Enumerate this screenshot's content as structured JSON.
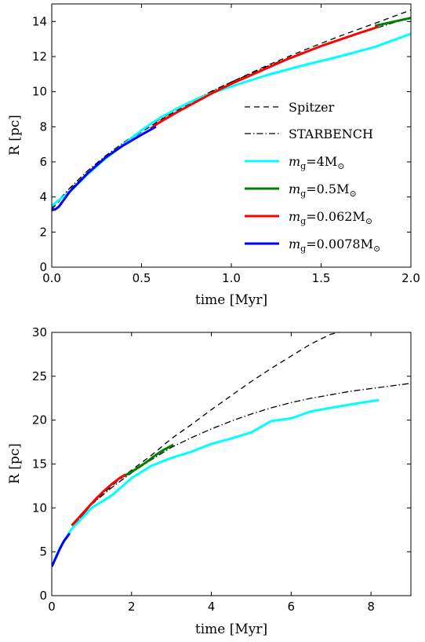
{
  "chart_data": [
    {
      "type": "line",
      "xlabel": "time [Myr]",
      "ylabel": "R [pc]",
      "xlim": [
        0,
        2.0
      ],
      "ylim": [
        0,
        15
      ],
      "xticks": [
        "0.0",
        "0.5",
        "1.0",
        "1.5",
        "2.0"
      ],
      "yticks": [
        "0",
        "2",
        "4",
        "6",
        "8",
        "10",
        "12",
        "14"
      ],
      "legend_placement": "lower-right",
      "series": [
        {
          "name": "Spitzer",
          "style": "dashed",
          "color": "#000000",
          "width": 1.3,
          "x": [
            0,
            0.05,
            0.1,
            0.2,
            0.3,
            0.4,
            0.5,
            0.6,
            0.7,
            0.8,
            0.9,
            1.0,
            1.2,
            1.4,
            1.6,
            1.8,
            2.0
          ],
          "y": [
            3.3,
            3.85,
            4.4,
            5.4,
            6.25,
            7.0,
            7.7,
            8.35,
            8.95,
            9.5,
            10.05,
            10.55,
            11.5,
            12.35,
            13.15,
            13.9,
            14.65
          ]
        },
        {
          "name": "STARBENCH",
          "style": "dashdot",
          "color": "#000000",
          "width": 1.3,
          "x": [
            0,
            0.05,
            0.1,
            0.2,
            0.3,
            0.4,
            0.5,
            0.6,
            0.7,
            0.8,
            0.9,
            1.0,
            1.2,
            1.4,
            1.6,
            1.8,
            2.0
          ],
          "y": [
            3.4,
            3.95,
            4.5,
            5.5,
            6.35,
            7.1,
            7.8,
            8.42,
            9.0,
            9.55,
            10.08,
            10.55,
            11.45,
            12.25,
            12.95,
            13.6,
            14.25
          ]
        },
        {
          "name": "m_g=4M_sun",
          "color": "#00ffff",
          "width": 3,
          "x": [
            0,
            0.1,
            0.2,
            0.3,
            0.4,
            0.5,
            0.6,
            0.7,
            0.8,
            0.9,
            1.0,
            1.2,
            1.4,
            1.6,
            1.8,
            2.0
          ],
          "y": [
            3.5,
            4.3,
            5.3,
            6.2,
            7.0,
            7.8,
            8.5,
            9.05,
            9.55,
            9.95,
            10.3,
            10.95,
            11.5,
            12.0,
            12.55,
            13.3
          ]
        },
        {
          "name": "m_g=0.5M_sun",
          "color": "#008000",
          "width": 3,
          "x": [
            1.8,
            1.9,
            2.0
          ],
          "y": [
            13.75,
            13.98,
            14.2
          ]
        },
        {
          "name": "m_g=0.062M_sun",
          "color": "#ff0000",
          "width": 3,
          "x": [
            0.55,
            0.6,
            0.7,
            0.8,
            0.9,
            1.0,
            1.1,
            1.2,
            1.3,
            1.4,
            1.5,
            1.6,
            1.7,
            1.82
          ],
          "y": [
            7.9,
            8.25,
            8.85,
            9.4,
            9.95,
            10.45,
            10.9,
            11.35,
            11.8,
            12.2,
            12.6,
            12.95,
            13.3,
            13.7
          ]
        },
        {
          "name": "m_g=0.0078M_sun",
          "color": "#0000ff",
          "width": 3,
          "x": [
            0,
            0.02,
            0.04,
            0.1,
            0.2,
            0.3,
            0.4,
            0.5,
            0.58
          ],
          "y": [
            3.25,
            3.3,
            3.45,
            4.3,
            5.35,
            6.25,
            6.95,
            7.55,
            8.0
          ]
        }
      ]
    },
    {
      "type": "line",
      "xlabel": "time [Myr]",
      "ylabel": "R [pc]",
      "xlim": [
        0,
        9
      ],
      "ylim": [
        0,
        30
      ],
      "xticks": [
        "0",
        "2",
        "4",
        "6",
        "8"
      ],
      "yticks": [
        "0",
        "5",
        "10",
        "15",
        "20",
        "25",
        "30"
      ],
      "series": [
        {
          "name": "Spitzer",
          "style": "dashed",
          "color": "#000000",
          "width": 1.3,
          "x": [
            0,
            0.2,
            0.5,
            1.0,
            1.5,
            2.0,
            2.5,
            3.0,
            3.5,
            4.0,
            4.5,
            5.0,
            5.5,
            6.0,
            6.5,
            7.0,
            7.2
          ],
          "y": [
            3.3,
            5.5,
            7.7,
            10.4,
            12.5,
            14.3,
            16.0,
            17.9,
            19.5,
            21.2,
            22.8,
            24.4,
            25.9,
            27.3,
            28.7,
            29.8,
            30.0
          ]
        },
        {
          "name": "STARBENCH",
          "style": "dashdot",
          "color": "#000000",
          "width": 1.3,
          "x": [
            0,
            0.2,
            0.5,
            1.0,
            1.5,
            2.0,
            2.5,
            3.0,
            3.5,
            4.0,
            4.5,
            5.0,
            5.5,
            6.0,
            6.5,
            7.0,
            7.5,
            8.0,
            8.5,
            9.0
          ],
          "y": [
            3.3,
            5.5,
            7.7,
            10.4,
            12.3,
            14.0,
            15.5,
            16.9,
            18.0,
            19.0,
            19.9,
            20.7,
            21.4,
            22.0,
            22.5,
            22.9,
            23.3,
            23.6,
            23.9,
            24.2
          ]
        },
        {
          "name": "m_g=4M_sun",
          "color": "#00ffff",
          "width": 3,
          "x": [
            0,
            0.2,
            0.5,
            1.0,
            1.5,
            2.0,
            2.5,
            3.0,
            3.5,
            4.0,
            4.5,
            5.0,
            5.5,
            6.0,
            6.5,
            7.0,
            7.5,
            8.2
          ],
          "y": [
            3.3,
            5.4,
            7.6,
            10.0,
            11.4,
            13.4,
            14.8,
            15.7,
            16.4,
            17.3,
            17.9,
            18.6,
            19.9,
            20.2,
            21.0,
            21.4,
            21.8,
            22.3
          ]
        },
        {
          "name": "m_g=0.5M_sun",
          "color": "#008000",
          "width": 3,
          "x": [
            1.8,
            2.0,
            2.2,
            2.4,
            2.6,
            2.8,
            3.05
          ],
          "y": [
            13.6,
            14.1,
            14.7,
            15.3,
            16.0,
            16.6,
            17.2
          ]
        },
        {
          "name": "m_g=0.062M_sun",
          "color": "#ff0000",
          "width": 3,
          "x": [
            0.5,
            0.7,
            0.9,
            1.1,
            1.3,
            1.5,
            1.7,
            1.85
          ],
          "y": [
            8.0,
            9.0,
            10.0,
            11.0,
            11.9,
            12.7,
            13.4,
            13.8
          ]
        },
        {
          "name": "m_g=0.0078M_sun",
          "color": "#0000ff",
          "width": 3,
          "x": [
            0,
            0.1,
            0.2,
            0.3,
            0.45
          ],
          "y": [
            3.3,
            4.3,
            5.3,
            6.2,
            7.1
          ]
        }
      ]
    }
  ],
  "legend": {
    "spitzer": "Spitzer",
    "starbench": "STARBENCH",
    "m1": {
      "sym": "m",
      "sub": "g",
      "eq": "=4M",
      "star": "⊙"
    },
    "m2": {
      "sym": "m",
      "sub": "g",
      "eq": "=0.5M",
      "star": "⊙"
    },
    "m3": {
      "sym": "m",
      "sub": "g",
      "eq": "=0.062M",
      "star": "⊙"
    },
    "m4": {
      "sym": "m",
      "sub": "g",
      "eq": "=0.0078M",
      "star": "⊙"
    }
  }
}
